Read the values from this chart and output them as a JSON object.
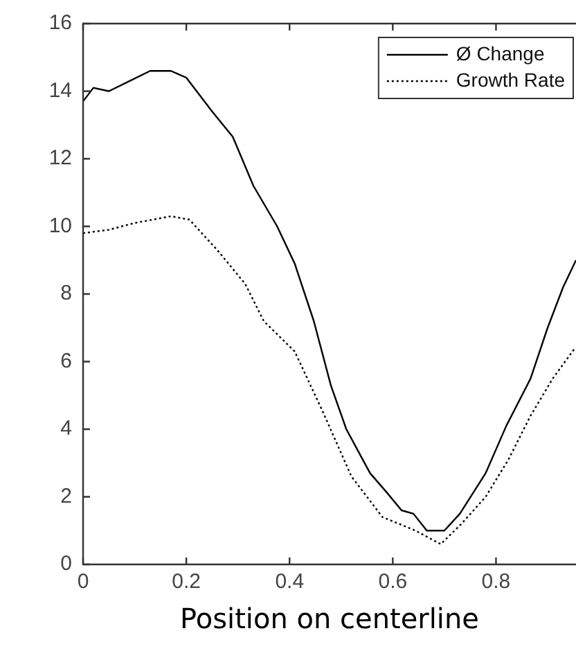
{
  "chart_data": {
    "type": "line",
    "xlabel": "Position on centerline",
    "xlim": [
      0,
      0.955
    ],
    "xticks": [
      0,
      0.2,
      0.4,
      0.6,
      0.8
    ],
    "ylim": [
      0,
      16
    ],
    "yticks": [
      0,
      2,
      4,
      6,
      8,
      10,
      12,
      14,
      16
    ],
    "grid": false,
    "legend": "top right",
    "marker": "none",
    "series": [
      {
        "name": "Ø Change",
        "color": "#000000",
        "line_style": "solid",
        "x": [
          0,
          0.02,
          0.05,
          0.09,
          0.13,
          0.17,
          0.2,
          0.22,
          0.25,
          0.29,
          0.33,
          0.376,
          0.41,
          0.447,
          0.48,
          0.51,
          0.556,
          0.59,
          0.617,
          0.64,
          0.666,
          0.69,
          0.7,
          0.73,
          0.78,
          0.82,
          0.867,
          0.9,
          0.93,
          0.955
        ],
        "values": [
          13.7,
          14.1,
          14.0,
          14.3,
          14.6,
          14.6,
          14.4,
          14.0,
          13.4,
          12.65,
          11.2,
          10.0,
          8.9,
          7.2,
          5.3,
          4.0,
          2.7,
          2.1,
          1.6,
          1.5,
          1.0,
          1.0,
          1.0,
          1.5,
          2.7,
          4.1,
          5.5,
          7.0,
          8.2,
          9.0
        ]
      },
      {
        "name": "Growth Rate",
        "color": "#000000",
        "line_style": "dotted",
        "x": [
          0,
          0.05,
          0.1,
          0.17,
          0.206,
          0.26,
          0.314,
          0.35,
          0.41,
          0.465,
          0.52,
          0.58,
          0.644,
          0.693,
          0.733,
          0.78,
          0.824,
          0.867,
          0.91,
          0.953
        ],
        "values": [
          9.8,
          9.9,
          10.1,
          10.3,
          10.2,
          9.3,
          8.3,
          7.2,
          6.3,
          4.5,
          2.6,
          1.4,
          1.0,
          0.6,
          1.2,
          2.0,
          3.1,
          4.4,
          5.5,
          6.4
        ]
      }
    ]
  }
}
